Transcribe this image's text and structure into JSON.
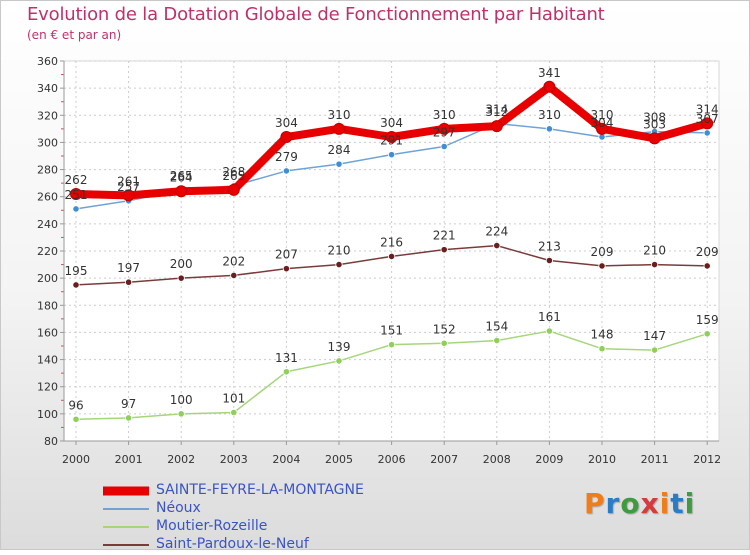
{
  "header": {
    "title": "Evolution de la Dotation Globale de Fonctionnement par Habitant",
    "subtitle": "(en € et par an)"
  },
  "logo": {
    "text": "Proxiti"
  },
  "colors": {
    "title": "#c0306a",
    "legend_text": "#3a54c4",
    "grid": "#cccccc",
    "axis": "#9a9a9a"
  },
  "chart_data": {
    "type": "line",
    "title": "Evolution de la Dotation Globale de Fonctionnement par Habitant",
    "subtitle": "(en € et par an)",
    "xlabel": "",
    "ylabel": "",
    "x": [
      "2000",
      "2001",
      "2002",
      "2003",
      "2004",
      "2005",
      "2006",
      "2007",
      "2008",
      "2009",
      "2010",
      "2011",
      "2012"
    ],
    "ylim": [
      80,
      360
    ],
    "yticks": [
      "80",
      "100",
      "120",
      "140",
      "160",
      "180",
      "200",
      "220",
      "240",
      "260",
      "280",
      "300",
      "320",
      "340",
      "360"
    ],
    "grid": true,
    "legend_position": "bottom",
    "series": [
      {
        "name": "SAINTE-FEYRE-LA-MONTAGNE",
        "color": "#e80000",
        "marker": "#e80000",
        "values": [
          262,
          261,
          264,
          265,
          304,
          310,
          304,
          310,
          312,
          341,
          310,
          303,
          314
        ]
      },
      {
        "name": "Néoux",
        "color": "#6fa3d6",
        "marker": "#3f8fd6",
        "values": [
          251,
          257,
          265,
          268,
          279,
          284,
          291,
          297,
          314,
          310,
          304,
          308,
          307
        ]
      },
      {
        "name": "Moutier-Rozeille",
        "color": "#a6d67a",
        "marker": "#8fd05a",
        "values": [
          96,
          97,
          100,
          101,
          131,
          139,
          151,
          152,
          154,
          161,
          148,
          147,
          159
        ]
      },
      {
        "name": "Saint-Pardoux-le-Neuf",
        "color": "#7a3b3b",
        "marker": "#6a1e1e",
        "values": [
          195,
          197,
          200,
          202,
          207,
          210,
          216,
          221,
          224,
          213,
          209,
          210,
          209
        ]
      }
    ]
  }
}
